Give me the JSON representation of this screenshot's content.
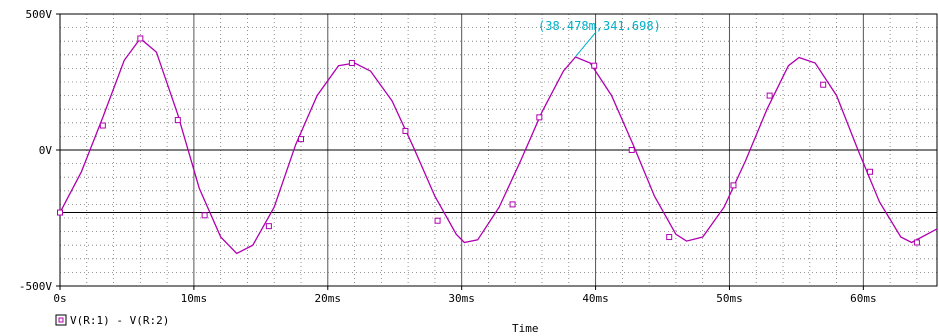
{
  "chart_data": {
    "type": "line",
    "title": "",
    "xlabel": "Time",
    "ylabel": "",
    "xlim": [
      0,
      65.5
    ],
    "ylim": [
      -500,
      500
    ],
    "x_unit": "ms",
    "y_unit": "V",
    "grid": true,
    "x_ticks": [
      {
        "value": 0,
        "label": "0s"
      },
      {
        "value": 10,
        "label": "10ms"
      },
      {
        "value": 20,
        "label": "20ms"
      },
      {
        "value": 30,
        "label": "30ms"
      },
      {
        "value": 40,
        "label": "40ms"
      },
      {
        "value": 50,
        "label": "50ms"
      },
      {
        "value": 60,
        "label": "60ms"
      }
    ],
    "y_ticks": [
      {
        "value": 500,
        "label": "500V"
      },
      {
        "value": 0,
        "label": "0V"
      },
      {
        "value": -500,
        "label": "-500V"
      }
    ],
    "series": [
      {
        "name": "V(R:1) - V(R:2)",
        "color": "#b000b0",
        "x": [
          0,
          1.6,
          3.2,
          4.8,
          6.0,
          7.2,
          8.8,
          10.4,
          12.0,
          13.2,
          14.4,
          16.0,
          17.6,
          19.2,
          20.8,
          22.0,
          23.2,
          24.8,
          26.4,
          28.0,
          29.6,
          30.2,
          31.2,
          32.8,
          34.4,
          36.0,
          37.6,
          38.5,
          39.6,
          41.2,
          42.8,
          44.4,
          46.0,
          46.8,
          48.0,
          49.6,
          51.2,
          52.8,
          54.4,
          55.2,
          56.4,
          58.0,
          59.6,
          61.2,
          62.8,
          63.6,
          65.5
        ],
        "y": [
          -230,
          -80,
          120,
          330,
          410,
          360,
          130,
          -140,
          -320,
          -380,
          -350,
          -210,
          20,
          200,
          310,
          320,
          290,
          180,
          10,
          -170,
          -310,
          -340,
          -330,
          -210,
          -40,
          140,
          290,
          342,
          320,
          200,
          20,
          -170,
          -310,
          -335,
          -320,
          -210,
          -40,
          150,
          310,
          340,
          320,
          200,
          0,
          -190,
          -320,
          -340,
          -290
        ]
      }
    ],
    "markers": [
      {
        "x": 0,
        "y": -230
      },
      {
        "x": 3.2,
        "y": 90
      },
      {
        "x": 6.0,
        "y": 410
      },
      {
        "x": 8.8,
        "y": 110
      },
      {
        "x": 10.8,
        "y": -240
      },
      {
        "x": 15.6,
        "y": -280
      },
      {
        "x": 18.0,
        "y": 40
      },
      {
        "x": 21.8,
        "y": 320
      },
      {
        "x": 25.8,
        "y": 70
      },
      {
        "x": 28.2,
        "y": -260
      },
      {
        "x": 33.8,
        "y": -200
      },
      {
        "x": 35.8,
        "y": 120
      },
      {
        "x": 39.9,
        "y": 310
      },
      {
        "x": 42.7,
        "y": 0
      },
      {
        "x": 45.5,
        "y": -320
      },
      {
        "x": 50.3,
        "y": -130
      },
      {
        "x": 53.0,
        "y": 200
      },
      {
        "x": 57.0,
        "y": 240
      },
      {
        "x": 60.5,
        "y": -80
      },
      {
        "x": 64.0,
        "y": -340
      }
    ],
    "annotations": [
      {
        "text": "(38.478m,341.698)",
        "x": 38.478,
        "y": 341.698,
        "color": "#00b0c8"
      }
    ],
    "reference_lines": [
      {
        "axis": "y",
        "value": -230,
        "color": "#000000"
      }
    ],
    "legend": {
      "placement": "bottom-left",
      "entries": [
        "V(R:1) - V(R:2)"
      ]
    }
  }
}
